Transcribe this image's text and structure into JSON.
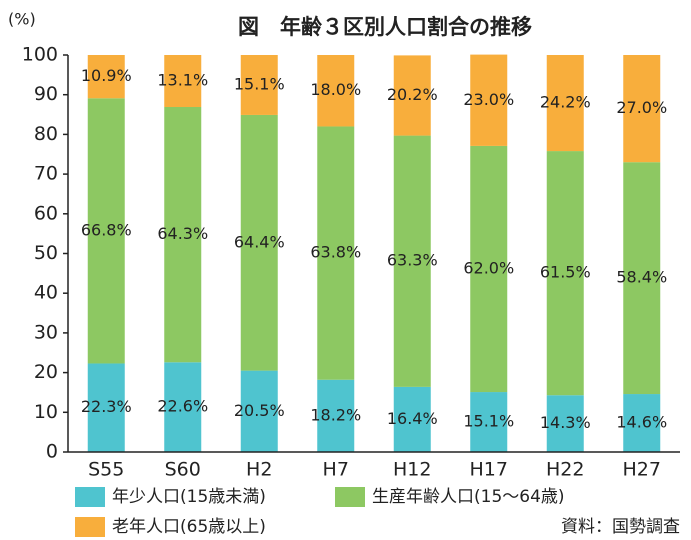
{
  "chart_data": {
    "type": "stacked_bar",
    "title": "図　年齢３区別人口割合の推移",
    "y_unit": "(%)",
    "source": "資料：国勢調査",
    "categories": [
      "S55",
      "S60",
      "H2",
      "H7",
      "H12",
      "H17",
      "H22",
      "H27"
    ],
    "series": [
      {
        "name": "年少人口(15歳未満)",
        "color": "#4fc4cf",
        "values": [
          22.3,
          22.6,
          20.5,
          18.2,
          16.4,
          15.1,
          14.3,
          14.6
        ],
        "value_labels": [
          "22.3%",
          "22.6%",
          "20.5%",
          "18.2%",
          "16.4%",
          "15.1%",
          "14.3%",
          "14.6%"
        ]
      },
      {
        "name": "生産年齢人口(15～64歳)",
        "color": "#8dc862",
        "values": [
          66.8,
          64.3,
          64.4,
          63.8,
          63.3,
          62.0,
          61.5,
          58.4
        ],
        "value_labels": [
          "66.8%",
          "64.3%",
          "64.4%",
          "63.8%",
          "63.3%",
          "62.0%",
          "61.5%",
          "58.4%"
        ]
      },
      {
        "name": "老年人口(65歳以上)",
        "color": "#f8ae3c",
        "values": [
          10.9,
          13.1,
          15.1,
          18.0,
          20.2,
          23.0,
          24.2,
          27.0
        ],
        "value_labels": [
          "10.9%",
          "13.1%",
          "15.1%",
          "18.0%",
          "20.2%",
          "23.0%",
          "24.2%",
          "27.0%"
        ]
      }
    ],
    "ylim": [
      0,
      100
    ],
    "yticks": [
      0,
      10,
      20,
      30,
      40,
      50,
      60,
      70,
      80,
      90,
      100
    ],
    "grid": false
  }
}
